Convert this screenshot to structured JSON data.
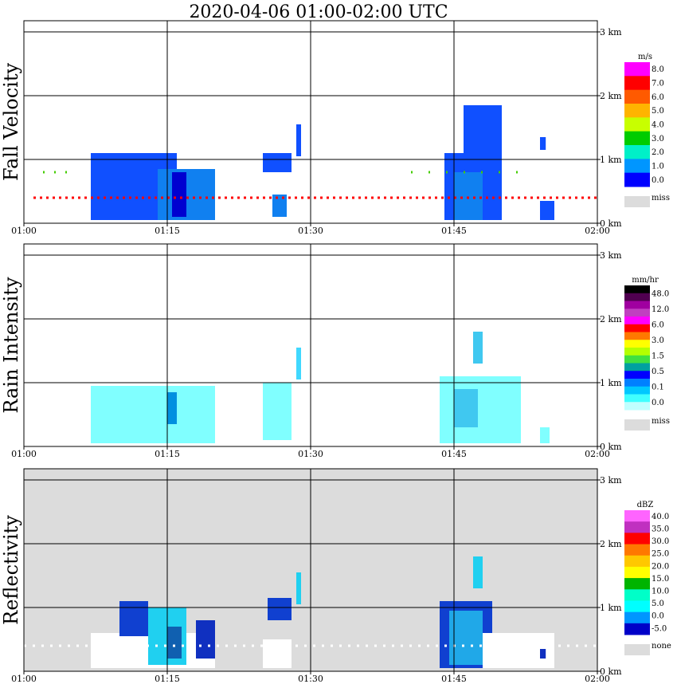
{
  "title": "2020-04-06   01:00-02:00 UTC",
  "x_ticks": [
    "01:00",
    "01:15",
    "01:30",
    "01:45",
    "02:00"
  ],
  "colors": {
    "frame": "#000000",
    "miss": "#dcdcdc"
  },
  "chart_data": [
    {
      "type": "heatmap",
      "name": "fall-velocity",
      "ylabel": "Fall Velocity",
      "x_range_min": [
        0,
        60
      ],
      "y_range_km": [
        0,
        3.0
      ],
      "y_ticks": [
        "0 km",
        "1 km",
        "2 km",
        "3 km"
      ],
      "background": "#ffffff",
      "colorbar": {
        "unit": "m/s",
        "labels": [
          "8.0",
          "7.0",
          "6.0",
          "5.0",
          "4.0",
          "3.0",
          "2.0",
          "1.0",
          "0.0"
        ],
        "colors": [
          "#ff00ff",
          "#ff0000",
          "#ff5a00",
          "#ffb400",
          "#c8ff00",
          "#00cc00",
          "#00f0c8",
          "#0096ff",
          "#0000ff"
        ],
        "miss_label": "miss"
      },
      "blobs": [
        {
          "x": [
            7,
            16
          ],
          "y": [
            0.05,
            1.1
          ],
          "c": "#1050ff"
        },
        {
          "x": [
            14,
            20
          ],
          "y": [
            0.05,
            0.85
          ],
          "c": "#1080f0"
        },
        {
          "x": [
            15.5,
            17
          ],
          "y": [
            0.1,
            0.8
          ],
          "c": "#0000d0"
        },
        {
          "x": [
            25,
            28
          ],
          "y": [
            0.8,
            1.1
          ],
          "c": "#1050ff"
        },
        {
          "x": [
            26,
            27.5
          ],
          "y": [
            0.1,
            0.45
          ],
          "c": "#1080f0"
        },
        {
          "x": [
            28.5,
            29
          ],
          "y": [
            1.05,
            1.55
          ],
          "c": "#1050ff"
        },
        {
          "x": [
            44,
            50
          ],
          "y": [
            0.05,
            1.1
          ],
          "c": "#1050ff"
        },
        {
          "x": [
            45,
            48
          ],
          "y": [
            0.05,
            0.8
          ],
          "c": "#1080f0"
        },
        {
          "x": [
            46,
            50
          ],
          "y": [
            0.9,
            1.85
          ],
          "c": "#1050ff"
        },
        {
          "x": [
            54,
            55.5
          ],
          "y": [
            0.05,
            0.35
          ],
          "c": "#1050ff"
        },
        {
          "x": [
            54,
            54.6
          ],
          "y": [
            1.15,
            1.35
          ],
          "c": "#1050ff"
        }
      ],
      "lines": [
        {
          "y": 0.4,
          "x": [
            1,
            60
          ],
          "c": "#ff0000",
          "dash": "3,5"
        },
        {
          "y": 0.8,
          "x": [
            2,
            5
          ],
          "c": "#44cc00",
          "dash": "2,12"
        },
        {
          "y": 0.8,
          "x": [
            40.5,
            52
          ],
          "c": "#44cc00",
          "dash": "2,20"
        }
      ]
    },
    {
      "type": "heatmap",
      "name": "rain-intensity",
      "ylabel": "Rain Intensity",
      "x_range_min": [
        0,
        60
      ],
      "y_range_km": [
        0,
        3.0
      ],
      "y_ticks": [
        "0 km",
        "1 km",
        "2 km",
        "3 km"
      ],
      "background": "#ffffff",
      "colorbar": {
        "unit": "mm/hr",
        "labels": [
          "48.0",
          "12.0",
          "6.0",
          "3.0",
          "1.5",
          "0.5",
          "0.1",
          "0.0"
        ],
        "colors": [
          "#000000",
          "#500050",
          "#a000a0",
          "#c040c0",
          "#ff00ff",
          "#ff0000",
          "#ff7800",
          "#ffff00",
          "#b4ff00",
          "#40e040",
          "#00a0a0",
          "#0000ff",
          "#0080ff",
          "#00c8ff",
          "#40ffff",
          "#c0ffff"
        ],
        "miss_label": "miss"
      },
      "blobs": [
        {
          "x": [
            7,
            20
          ],
          "y": [
            0.05,
            0.95
          ],
          "c": "#80ffff"
        },
        {
          "x": [
            15,
            16
          ],
          "y": [
            0.35,
            0.85
          ],
          "c": "#0090e0"
        },
        {
          "x": [
            25,
            28
          ],
          "y": [
            0.1,
            1.0
          ],
          "c": "#80ffff"
        },
        {
          "x": [
            28.5,
            29
          ],
          "y": [
            1.05,
            1.55
          ],
          "c": "#40d8ff"
        },
        {
          "x": [
            43.5,
            52
          ],
          "y": [
            0.05,
            1.1
          ],
          "c": "#80ffff"
        },
        {
          "x": [
            45,
            47.5
          ],
          "y": [
            0.3,
            0.9
          ],
          "c": "#40c8f0"
        },
        {
          "x": [
            47,
            48
          ],
          "y": [
            1.3,
            1.8
          ],
          "c": "#40c8f0"
        },
        {
          "x": [
            54,
            55
          ],
          "y": [
            0.05,
            0.3
          ],
          "c": "#80ffff"
        }
      ],
      "lines": []
    },
    {
      "type": "heatmap",
      "name": "reflectivity",
      "ylabel": "Reflectivity",
      "x_range_min": [
        0,
        60
      ],
      "y_range_km": [
        0,
        3.0
      ],
      "y_ticks": [
        "0 km",
        "1 km",
        "2 km",
        "3 km"
      ],
      "background": "#dcdcdc",
      "colorbar": {
        "unit": "dBZ",
        "labels": [
          "40.0",
          "35.0",
          "30.0",
          "25.0",
          "20.0",
          "15.0",
          "10.0",
          "5.0",
          "0.0",
          "-5.0"
        ],
        "colors": [
          "#ff64ff",
          "#c030c0",
          "#ff0000",
          "#ff7800",
          "#ffc800",
          "#ffff00",
          "#00b400",
          "#00ffc8",
          "#00ffff",
          "#0096ff",
          "#0000c8"
        ],
        "miss_label": "none"
      },
      "blobs": [
        {
          "x": [
            7,
            20
          ],
          "y": [
            0.05,
            0.6
          ],
          "c": "#ffffff"
        },
        {
          "x": [
            10,
            13
          ],
          "y": [
            0.55,
            1.1
          ],
          "c": "#1040d0"
        },
        {
          "x": [
            13,
            17
          ],
          "y": [
            0.1,
            1.0
          ],
          "c": "#20d0f0"
        },
        {
          "x": [
            15,
            16.5
          ],
          "y": [
            0.2,
            0.7
          ],
          "c": "#1060b0"
        },
        {
          "x": [
            18,
            20
          ],
          "y": [
            0.2,
            0.8
          ],
          "c": "#1030c0"
        },
        {
          "x": [
            25,
            28
          ],
          "y": [
            0.05,
            0.5
          ],
          "c": "#ffffff"
        },
        {
          "x": [
            25.5,
            28
          ],
          "y": [
            0.8,
            1.15
          ],
          "c": "#1040d0"
        },
        {
          "x": [
            28.5,
            29
          ],
          "y": [
            1.05,
            1.55
          ],
          "c": "#20d0f0"
        },
        {
          "x": [
            43.5,
            49
          ],
          "y": [
            0.05,
            1.1
          ],
          "c": "#1040d0"
        },
        {
          "x": [
            44.5,
            48
          ],
          "y": [
            0.1,
            0.95
          ],
          "c": "#20a8e8"
        },
        {
          "x": [
            48,
            55.5
          ],
          "y": [
            0.05,
            0.6
          ],
          "c": "#ffffff"
        },
        {
          "x": [
            47,
            48
          ],
          "y": [
            1.3,
            1.8
          ],
          "c": "#20d0f0"
        },
        {
          "x": [
            54,
            54.6
          ],
          "y": [
            0.2,
            0.35
          ],
          "c": "#1030c0"
        }
      ],
      "lines": [
        {
          "y": 0.4,
          "x": [
            0,
            60
          ],
          "c": "#ffffff",
          "dash": "3,8"
        }
      ]
    }
  ]
}
